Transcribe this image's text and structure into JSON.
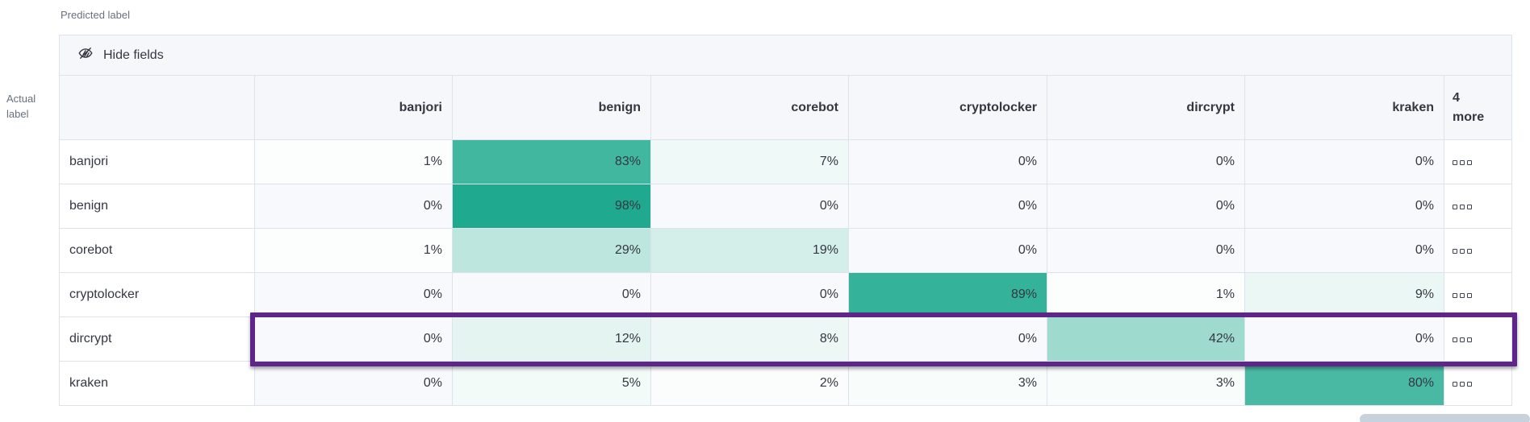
{
  "axes": {
    "predicted_label": "Predicted label",
    "actual_label": "Actual label"
  },
  "toolbar": {
    "hide_fields_label": "Hide fields",
    "hide_fields_icon": "eye-closed-icon"
  },
  "more_columns": {
    "header_label": "4 more",
    "cell_icon": "boxes-horizontal-icon"
  },
  "colors": {
    "heat_base_rgb": [
      27,
      168,
      141
    ],
    "empty_cell_bg": "#f7f9fc",
    "header_bg": "#f5f7fa",
    "grid_border": "#d3dae6",
    "inner_border": "#dde3ed",
    "text": "#343741",
    "caption_text": "#69707d",
    "highlight_border": "#5f2689",
    "scrollbar_thumb": "#c9d1dc"
  },
  "chart_data": {
    "type": "heatmap",
    "xlabel": "Predicted label",
    "ylabel": "Actual label",
    "value_suffix": "%",
    "value_range": [
      0,
      100
    ],
    "columns": [
      "banjori",
      "benign",
      "corebot",
      "cryptolocker",
      "dircrypt",
      "kraken"
    ],
    "hidden_columns_count": 4,
    "rows": [
      {
        "label": "banjori",
        "values": [
          1,
          83,
          7,
          0,
          0,
          0
        ],
        "highlighted": false
      },
      {
        "label": "benign",
        "values": [
          0,
          98,
          0,
          0,
          0,
          0
        ],
        "highlighted": false
      },
      {
        "label": "corebot",
        "values": [
          1,
          29,
          19,
          0,
          0,
          0
        ],
        "highlighted": false
      },
      {
        "label": "cryptolocker",
        "values": [
          0,
          0,
          0,
          89,
          1,
          9
        ],
        "highlighted": false
      },
      {
        "label": "dircrypt",
        "values": [
          0,
          12,
          8,
          0,
          42,
          0
        ],
        "highlighted": true
      },
      {
        "label": "kraken",
        "values": [
          0,
          5,
          2,
          3,
          3,
          80
        ],
        "highlighted": false
      }
    ]
  }
}
